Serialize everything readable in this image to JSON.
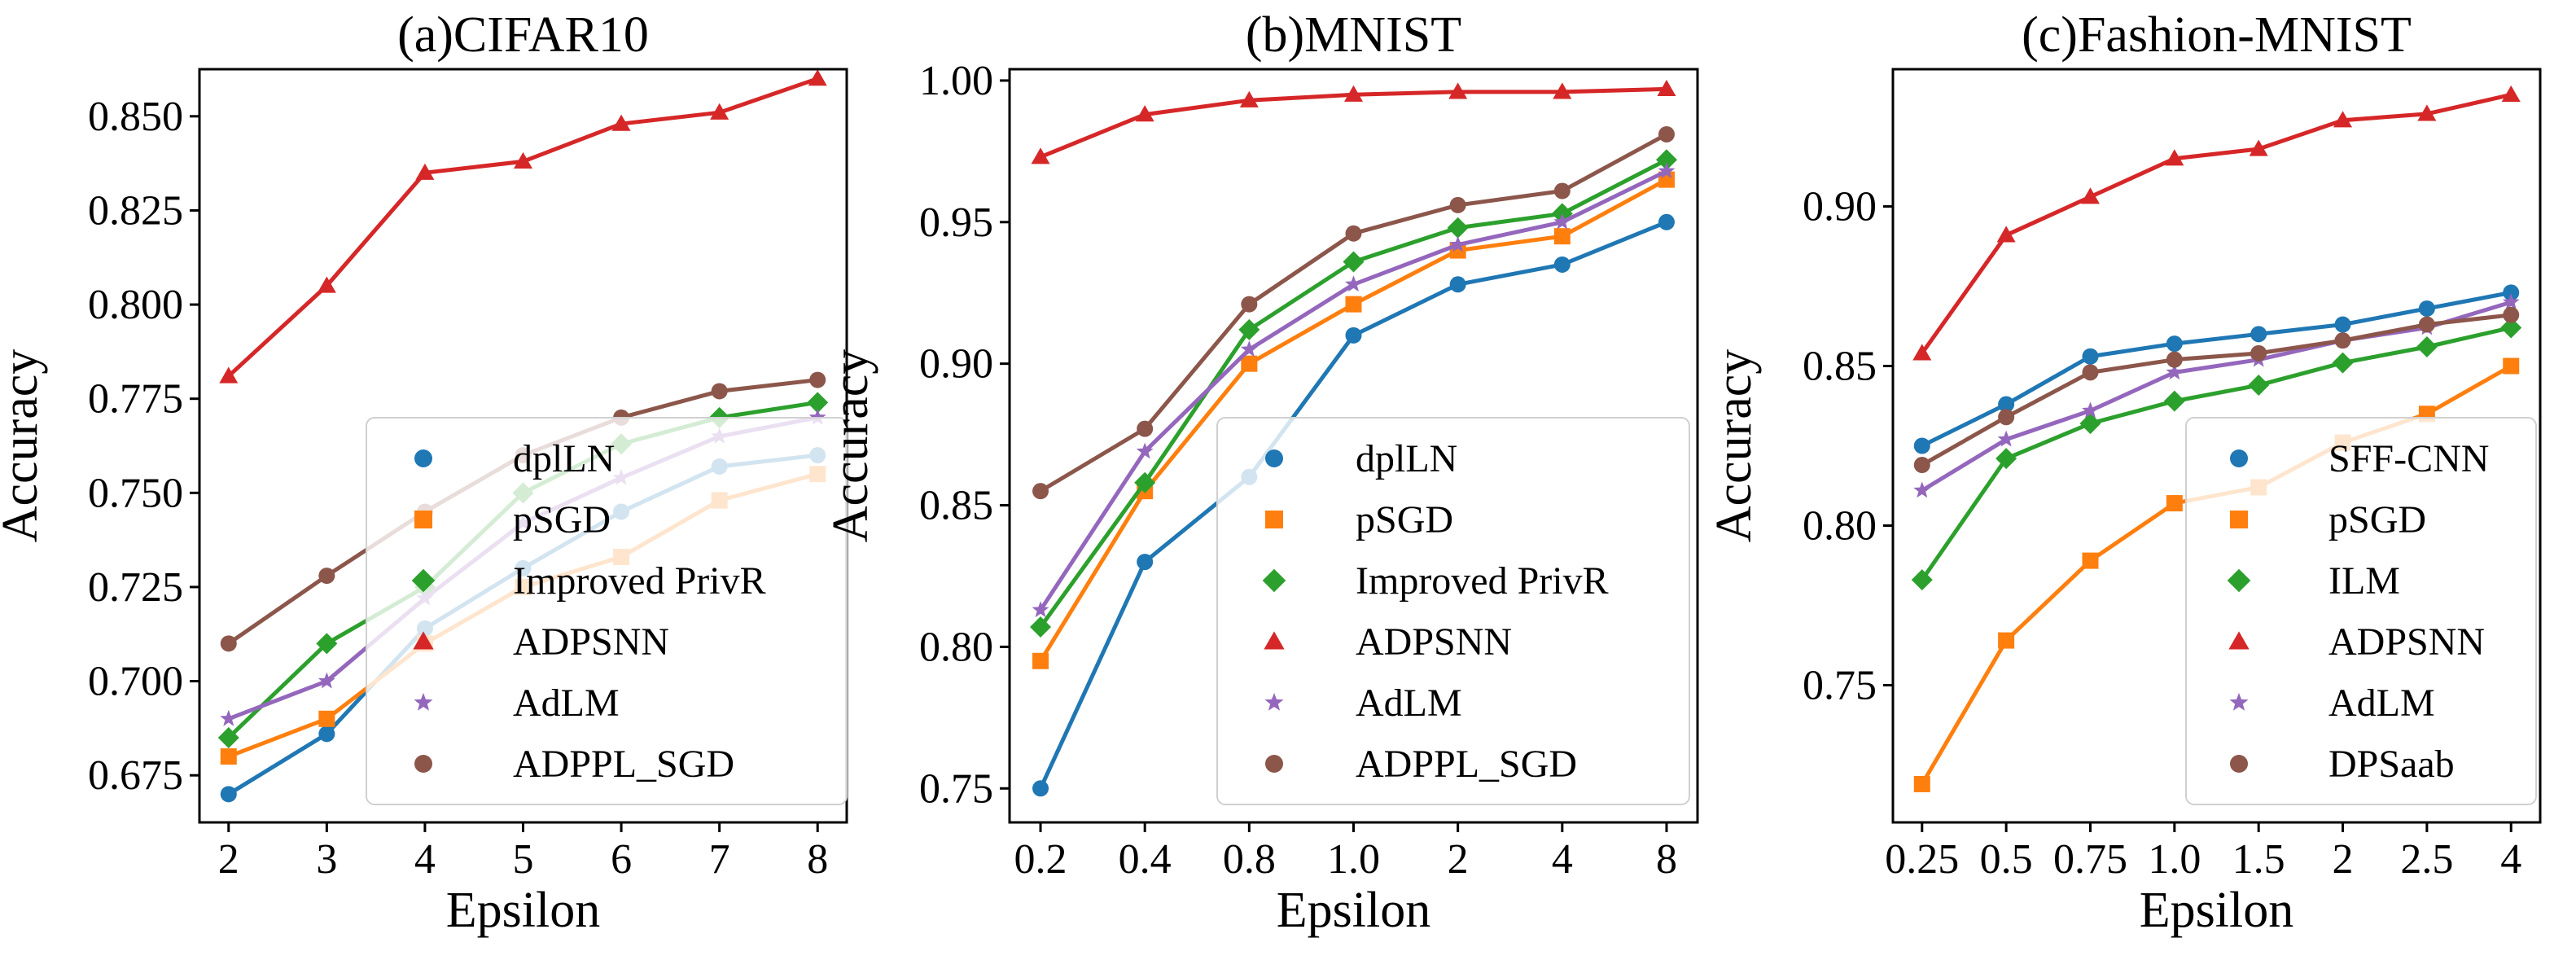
{
  "figure": {
    "colors": {
      "dplLN": "#1f77b4",
      "SFF-CNN": "#1f77b4",
      "pSGD": "#ff7f0e",
      "Improved PrivR": "#2ca02c",
      "ILM": "#2ca02c",
      "ADPSNN": "#d62728",
      "AdLM": "#9467bd",
      "ADPPL_SGD": "#8c564b",
      "DPSaab": "#8c564b"
    }
  },
  "chart_data": [
    {
      "type": "line",
      "title": "(a)CIFAR10",
      "xlabel": "Epsilon",
      "ylabel": "Accuracy",
      "categories": [
        "2",
        "3",
        "4",
        "5",
        "6",
        "7",
        "8"
      ],
      "ylim": [
        0.6625,
        0.8625
      ],
      "yticks": [
        0.675,
        0.7,
        0.725,
        0.75,
        0.775,
        0.8,
        0.825,
        0.85
      ],
      "ytick_labels": [
        "0.675",
        "0.700",
        "0.725",
        "0.750",
        "0.775",
        "0.800",
        "0.825",
        "0.850"
      ],
      "legend_position": "lower-right",
      "series": [
        {
          "name": "dplLN",
          "marker": "circle",
          "values": [
            0.67,
            0.686,
            0.714,
            0.73,
            0.745,
            0.757,
            0.76
          ]
        },
        {
          "name": "pSGD",
          "marker": "square",
          "values": [
            0.68,
            0.69,
            0.71,
            0.725,
            0.733,
            0.748,
            0.755
          ]
        },
        {
          "name": "Improved PrivR",
          "marker": "diamond",
          "values": [
            0.685,
            0.71,
            0.725,
            0.75,
            0.763,
            0.77,
            0.774
          ]
        },
        {
          "name": "ADPSNN",
          "marker": "triangle",
          "values": [
            0.781,
            0.805,
            0.835,
            0.838,
            0.848,
            0.851,
            0.86
          ]
        },
        {
          "name": "AdLM",
          "marker": "star",
          "values": [
            0.69,
            0.7,
            0.722,
            0.742,
            0.754,
            0.765,
            0.77
          ]
        },
        {
          "name": "ADPPL_SGD",
          "marker": "circle",
          "values": [
            0.71,
            0.728,
            0.745,
            0.76,
            0.77,
            0.777,
            0.78
          ]
        }
      ]
    },
    {
      "type": "line",
      "title": "(b)MNIST",
      "xlabel": "Epsilon",
      "ylabel": "Accuracy",
      "categories": [
        "0.2",
        "0.4",
        "0.8",
        "1.0",
        "2",
        "4",
        "8"
      ],
      "ylim": [
        0.738,
        1.004
      ],
      "yticks": [
        0.75,
        0.8,
        0.85,
        0.9,
        0.95,
        1.0
      ],
      "ytick_labels": [
        "0.75",
        "0.80",
        "0.85",
        "0.90",
        "0.95",
        "1.00"
      ],
      "legend_position": "lower-right",
      "series": [
        {
          "name": "dplLN",
          "marker": "circle",
          "values": [
            0.75,
            0.83,
            0.86,
            0.91,
            0.928,
            0.935,
            0.95
          ]
        },
        {
          "name": "pSGD",
          "marker": "square",
          "values": [
            0.795,
            0.855,
            0.9,
            0.921,
            0.94,
            0.945,
            0.965
          ]
        },
        {
          "name": "Improved PrivR",
          "marker": "diamond",
          "values": [
            0.807,
            0.858,
            0.912,
            0.936,
            0.948,
            0.953,
            0.972
          ]
        },
        {
          "name": "ADPSNN",
          "marker": "triangle",
          "values": [
            0.973,
            0.988,
            0.993,
            0.995,
            0.996,
            0.996,
            0.997
          ]
        },
        {
          "name": "AdLM",
          "marker": "star",
          "values": [
            0.813,
            0.869,
            0.905,
            0.928,
            0.942,
            0.95,
            0.968
          ]
        },
        {
          "name": "ADPPL_SGD",
          "marker": "circle",
          "values": [
            0.855,
            0.877,
            0.921,
            0.946,
            0.956,
            0.961,
            0.981
          ]
        }
      ]
    },
    {
      "type": "line",
      "title": "(c)Fashion-MNIST",
      "xlabel": "Epsilon",
      "ylabel": "Accuracy",
      "categories": [
        "0.25",
        "0.5",
        "0.75",
        "1.0",
        "1.5",
        "2",
        "2.5",
        "4"
      ],
      "ylim": [
        0.707,
        0.943
      ],
      "yticks": [
        0.75,
        0.8,
        0.85,
        0.9
      ],
      "ytick_labels": [
        "0.75",
        "0.80",
        "0.85",
        "0.90"
      ],
      "legend_position": "lower-right",
      "series": [
        {
          "name": "SFF-CNN",
          "marker": "circle",
          "values": [
            0.825,
            0.838,
            0.853,
            0.857,
            0.86,
            0.863,
            0.868,
            0.873
          ]
        },
        {
          "name": "pSGD",
          "marker": "square",
          "values": [
            0.719,
            0.764,
            0.789,
            0.807,
            0.812,
            0.826,
            0.835,
            0.85
          ]
        },
        {
          "name": "ILM",
          "marker": "diamond",
          "values": [
            0.783,
            0.821,
            0.832,
            0.839,
            0.844,
            0.851,
            0.856,
            0.862
          ]
        },
        {
          "name": "ADPSNN",
          "marker": "triangle",
          "values": [
            0.854,
            0.891,
            0.903,
            0.915,
            0.918,
            0.927,
            0.929,
            0.935
          ]
        },
        {
          "name": "AdLM",
          "marker": "star",
          "values": [
            0.811,
            0.827,
            0.836,
            0.848,
            0.852,
            0.858,
            0.862,
            0.87
          ]
        },
        {
          "name": "DPSaab",
          "marker": "circle",
          "values": [
            0.819,
            0.834,
            0.848,
            0.852,
            0.854,
            0.858,
            0.863,
            0.866
          ]
        }
      ]
    }
  ]
}
